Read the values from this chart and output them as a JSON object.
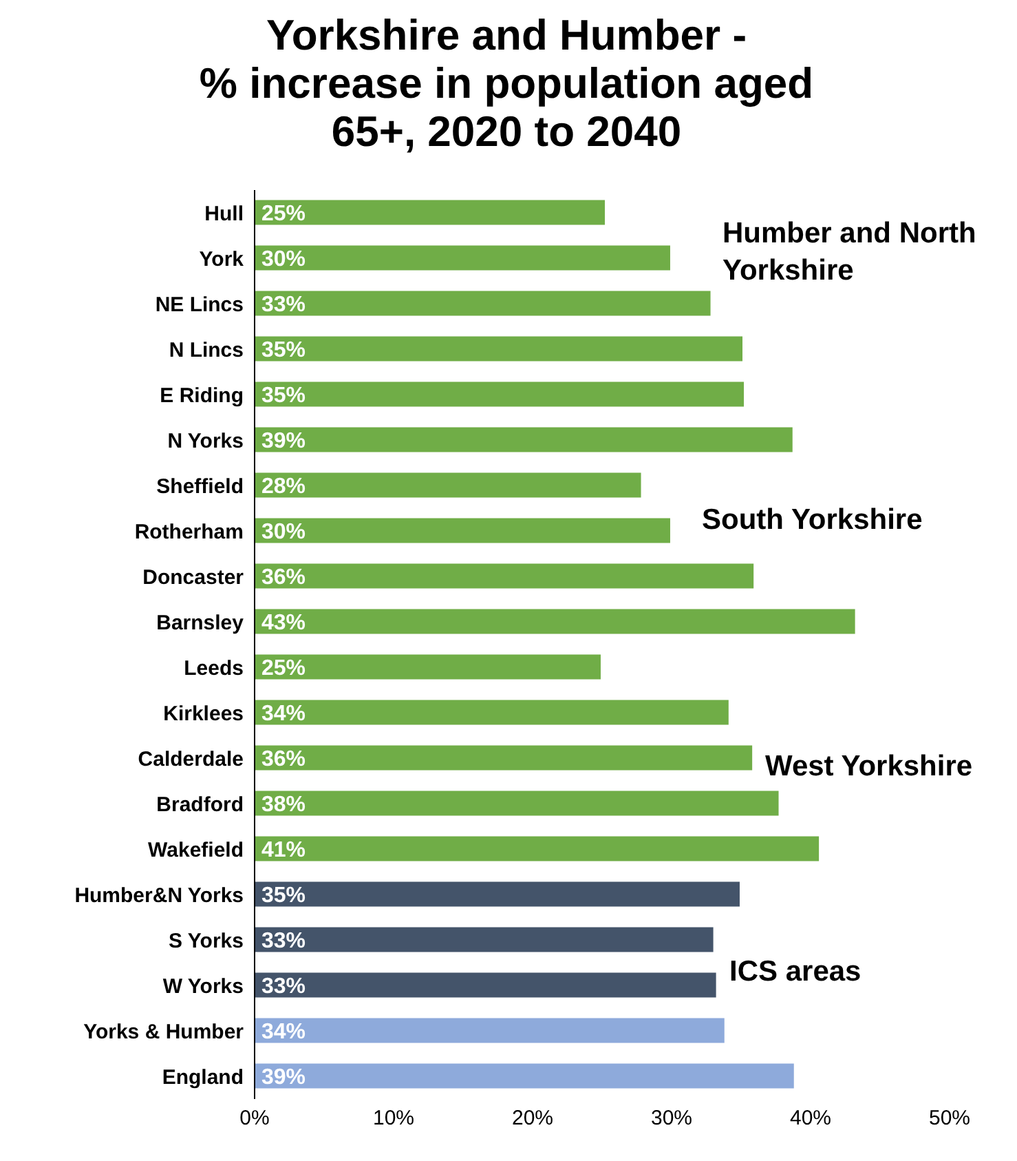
{
  "chart_data": {
    "type": "bar",
    "orientation": "horizontal",
    "title": "Yorkshire and Humber -\n% increase in population aged\n65+, 2020 to 2040",
    "categories": [
      "Hull",
      "York",
      "NE Lincs",
      "N Lincs",
      "E Riding",
      "N Yorks",
      "Sheffield",
      "Rotherham",
      "Doncaster",
      "Barnsley",
      "Leeds",
      "Kirklees",
      "Calderdale",
      "Bradford",
      "Wakefield",
      "Humber&N Yorks",
      "S Yorks",
      "W Yorks",
      "Yorks & Humber",
      "England"
    ],
    "values": [
      25.2,
      29.9,
      32.8,
      35.1,
      35.2,
      38.7,
      27.8,
      29.9,
      35.9,
      43.2,
      24.9,
      34.1,
      35.8,
      37.7,
      40.6,
      34.9,
      33.0,
      33.2,
      33.8,
      38.8
    ],
    "value_labels": [
      "25%",
      "30%",
      "33%",
      "35%",
      "35%",
      "39%",
      "28%",
      "30%",
      "36%",
      "43%",
      "25%",
      "34%",
      "36%",
      "38%",
      "41%",
      "35%",
      "33%",
      "33%",
      "34%",
      "39%"
    ],
    "colors": [
      "#70ad47",
      "#70ad47",
      "#70ad47",
      "#70ad47",
      "#70ad47",
      "#70ad47",
      "#70ad47",
      "#70ad47",
      "#70ad47",
      "#70ad47",
      "#70ad47",
      "#70ad47",
      "#70ad47",
      "#70ad47",
      "#70ad47",
      "#44546a",
      "#44546a",
      "#44546a",
      "#8eaadb",
      "#8eaadb"
    ],
    "xlim": [
      0,
      50
    ],
    "xticks": [
      {
        "value": 0,
        "label": "0%"
      },
      {
        "value": 10,
        "label": "10%"
      },
      {
        "value": 20,
        "label": "20%"
      },
      {
        "value": 30,
        "label": "30%"
      },
      {
        "value": 40,
        "label": "40%"
      },
      {
        "value": 50,
        "label": "50%"
      }
    ],
    "annotations": [
      "Humber and North Yorkshire",
      "South Yorkshire",
      "West Yorkshire",
      "ICS areas"
    ],
    "grid": false,
    "legend": false
  }
}
